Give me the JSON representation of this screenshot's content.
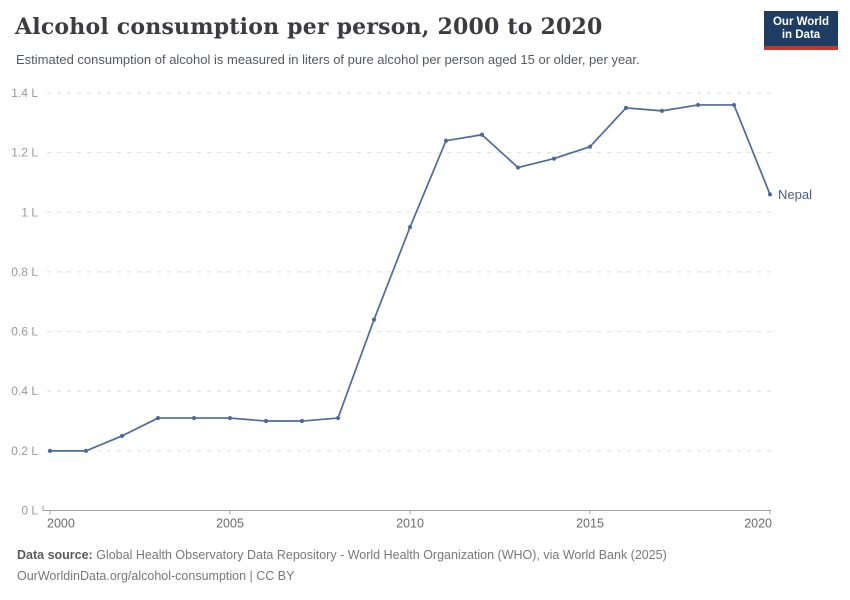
{
  "header": {
    "title": "Alcohol consumption per person, 2000 to 2020",
    "subtitle": "Estimated consumption of alcohol is measured in liters of pure alcohol per person aged 15 or older, per year."
  },
  "logo": {
    "line1": "Our World",
    "line2": "in Data",
    "bg_color": "#1d3d63",
    "bar_color": "#c0392b"
  },
  "chart_data": {
    "type": "line",
    "title": "Alcohol consumption per person, 2000 to 2020",
    "x": [
      2000,
      2001,
      2002,
      2003,
      2004,
      2005,
      2006,
      2007,
      2008,
      2009,
      2010,
      2011,
      2012,
      2013,
      2014,
      2015,
      2016,
      2017,
      2018,
      2019,
      2020
    ],
    "series": [
      {
        "name": "Nepal",
        "values": [
          0.2,
          0.2,
          0.25,
          0.31,
          0.31,
          0.31,
          0.3,
          0.3,
          0.31,
          0.64,
          0.95,
          1.24,
          1.26,
          1.15,
          1.18,
          1.22,
          1.35,
          1.34,
          1.36,
          1.36,
          1.06
        ]
      }
    ],
    "xlabel": "",
    "ylabel": "",
    "xlim": [
      2000,
      2020
    ],
    "ylim": [
      0,
      1.4
    ],
    "x_ticks": [
      2000,
      2005,
      2010,
      2015,
      2020
    ],
    "x_tick_labels": [
      "2000",
      "2005",
      "2010",
      "2015",
      "2020"
    ],
    "y_ticks": [
      0,
      0.2,
      0.4,
      0.6,
      0.8,
      1,
      1.2,
      1.4
    ],
    "y_tick_labels": [
      "0 L",
      "0.2 L",
      "0.4 L",
      "0.6 L",
      "0.8 L",
      "1 L",
      "1.2 L",
      "1.4 L"
    ],
    "grid": "horizontal-dashed",
    "legend_position": "end-of-line-label",
    "end_label": "Nepal",
    "colors": {
      "line": "#4c6a9c",
      "end_label": "#44618f",
      "grid": "#dddddd",
      "axis": "#a1a1a1",
      "y_tick_text": "#999999",
      "x_tick_text": "#6b6b6b"
    }
  },
  "footer": {
    "source_label": "Data source:",
    "source_text": " Global Health Observatory Data Repository - World Health Organization (WHO), via World Bank (2025)",
    "note": "OurWorldinData.org/alcohol-consumption | CC BY"
  }
}
